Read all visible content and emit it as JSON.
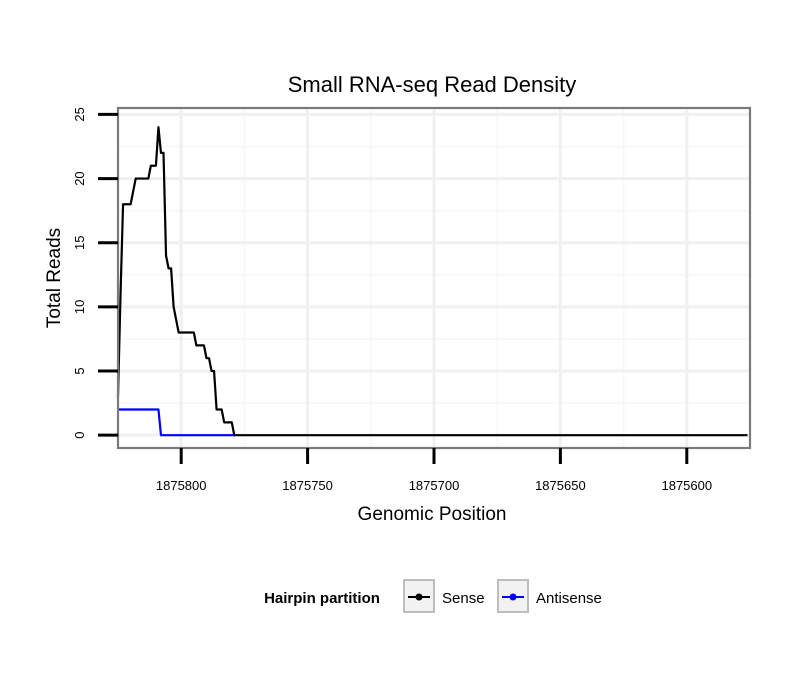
{
  "chart_data": {
    "type": "line",
    "title": "Small RNA-seq Read Density",
    "xlabel": "Genomic Position",
    "ylabel": "Total Reads",
    "x_reversed": true,
    "xlim": [
      1875825,
      1875575
    ],
    "ylim": [
      -1,
      25.5
    ],
    "x_ticks": [
      1875800,
      1875750,
      1875700,
      1875650,
      1875600
    ],
    "x_tick_labels": [
      "1875800",
      "1875750",
      "1875700",
      "1875650",
      "1875600"
    ],
    "y_ticks": [
      0,
      5,
      10,
      15,
      20,
      25
    ],
    "y_tick_labels": [
      "0",
      "5",
      "10",
      "15",
      "20",
      "25"
    ],
    "grid": true,
    "legend": {
      "title": "Hairpin partition",
      "position": "bottom"
    },
    "series": [
      {
        "name": "Sense",
        "color": "#000000",
        "points": [
          [
            1875825,
            3
          ],
          [
            1875824,
            11
          ],
          [
            1875823,
            18
          ],
          [
            1875821,
            18
          ],
          [
            1875820,
            18
          ],
          [
            1875818,
            20
          ],
          [
            1875813,
            20
          ],
          [
            1875812,
            21
          ],
          [
            1875810,
            21
          ],
          [
            1875809,
            24
          ],
          [
            1875808,
            22
          ],
          [
            1875807,
            22
          ],
          [
            1875806,
            14
          ],
          [
            1875805,
            13
          ],
          [
            1875804,
            13
          ],
          [
            1875803,
            10
          ],
          [
            1875801,
            8
          ],
          [
            1875797,
            8
          ],
          [
            1875795,
            8
          ],
          [
            1875794,
            7
          ],
          [
            1875791,
            7
          ],
          [
            1875790,
            6
          ],
          [
            1875789,
            6
          ],
          [
            1875788,
            5
          ],
          [
            1875787,
            5
          ],
          [
            1875786,
            2
          ],
          [
            1875784,
            2
          ],
          [
            1875783,
            1
          ],
          [
            1875780,
            1
          ],
          [
            1875779,
            0
          ],
          [
            1875576,
            0
          ]
        ]
      },
      {
        "name": "Antisense",
        "color": "#0000ff",
        "points": [
          [
            1875825,
            2
          ],
          [
            1875817,
            2
          ],
          [
            1875809,
            2
          ],
          [
            1875808,
            0
          ],
          [
            1875779,
            0
          ]
        ]
      }
    ]
  }
}
